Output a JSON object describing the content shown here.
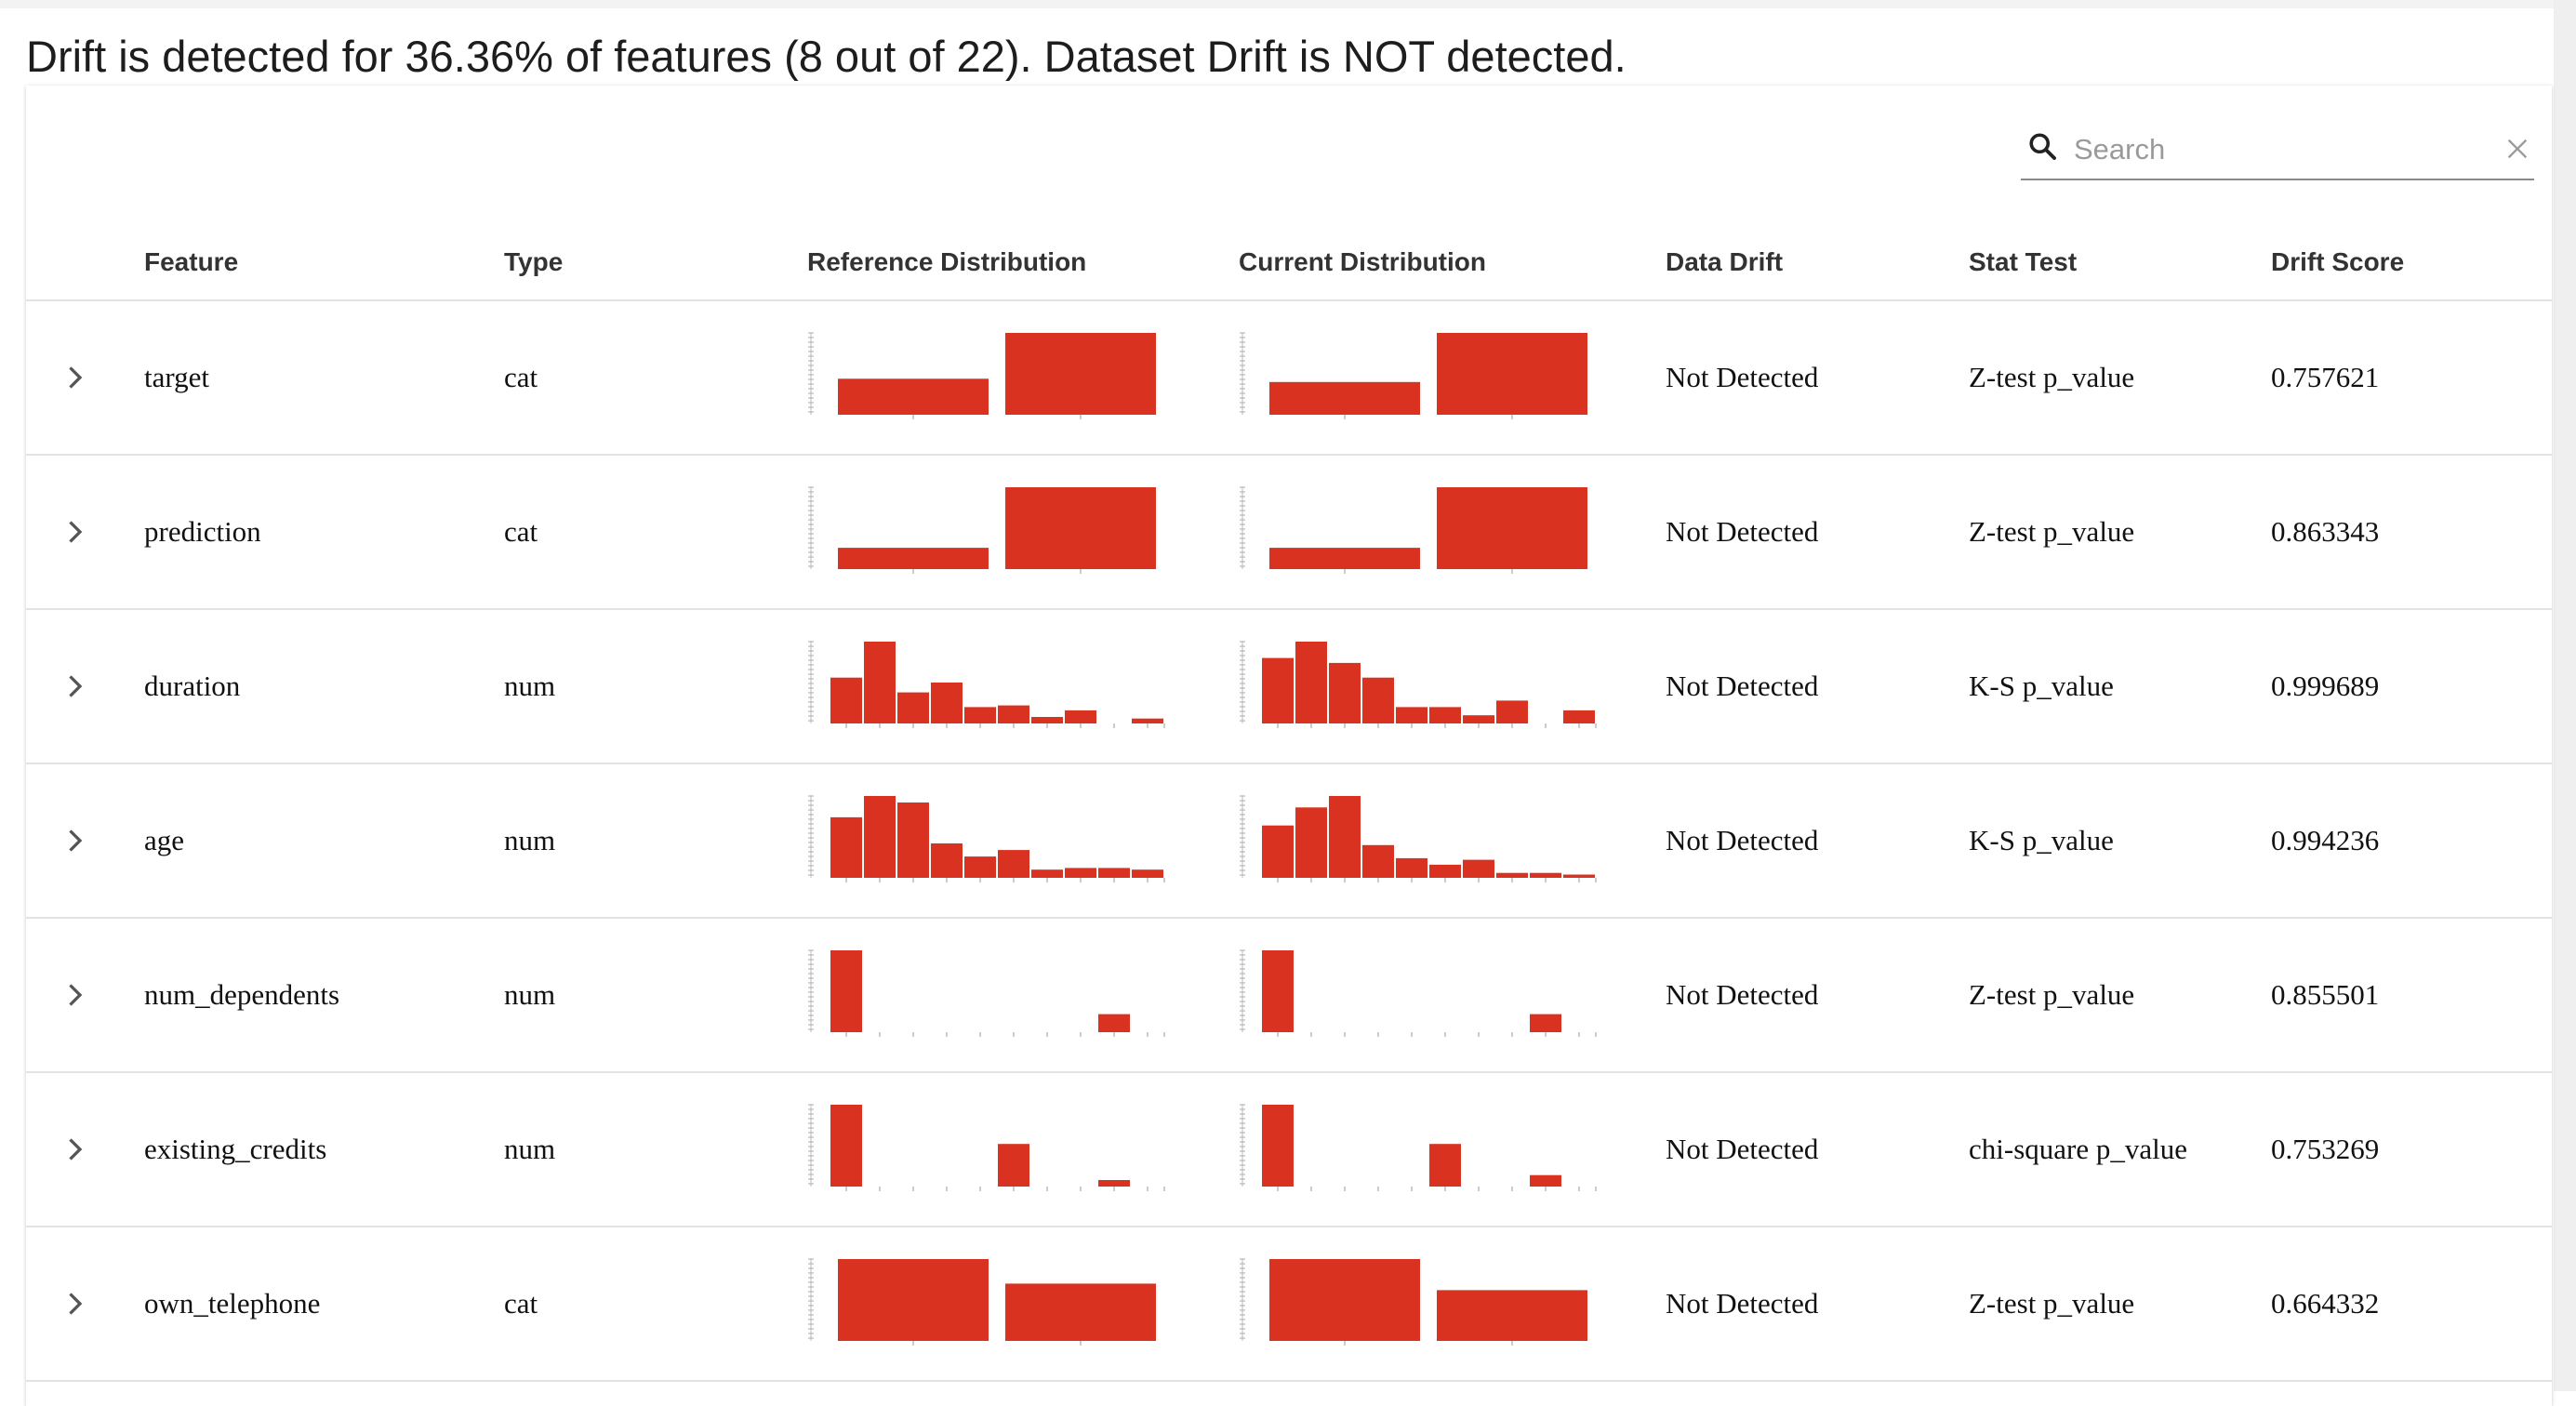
{
  "report": {
    "summary": "Drift is detected for 36.36% of features (8 out of 22). Dataset Drift is NOT detected."
  },
  "search": {
    "placeholder": "Search",
    "value": "",
    "icon": "search-icon",
    "clear_icon": "close-icon"
  },
  "table": {
    "columns": {
      "feature": "Feature",
      "type": "Type",
      "reference": "Reference Distribution",
      "current": "Current Distribution",
      "drift": "Data Drift",
      "test": "Stat Test",
      "score": "Drift Score"
    },
    "rows": [
      {
        "feature": "target",
        "type": "cat",
        "drift": "Not Detected",
        "test": "Z-test p_value",
        "score": "0.757621",
        "ref": [
          0.44,
          1.0
        ],
        "cur": [
          0.4,
          1.0
        ]
      },
      {
        "feature": "prediction",
        "type": "cat",
        "drift": "Not Detected",
        "test": "Z-test p_value",
        "score": "0.863343",
        "ref": [
          0.26,
          1.0
        ],
        "cur": [
          0.26,
          1.0
        ]
      },
      {
        "feature": "duration",
        "type": "num",
        "drift": "Not Detected",
        "test": "K-S p_value",
        "score": "0.999689",
        "ref": [
          0.56,
          1.0,
          0.38,
          0.5,
          0.2,
          0.22,
          0.08,
          0.16,
          0.0,
          0.06
        ],
        "cur": [
          0.8,
          1.0,
          0.74,
          0.56,
          0.2,
          0.2,
          0.1,
          0.28,
          0.0,
          0.16
        ]
      },
      {
        "feature": "age",
        "type": "num",
        "drift": "Not Detected",
        "test": "K-S p_value",
        "score": "0.994236",
        "ref": [
          0.74,
          1.0,
          0.92,
          0.42,
          0.26,
          0.34,
          0.1,
          0.12,
          0.12,
          0.1
        ],
        "cur": [
          0.64,
          0.86,
          1.0,
          0.4,
          0.24,
          0.16,
          0.22,
          0.06,
          0.06,
          0.04
        ]
      },
      {
        "feature": "num_dependents",
        "type": "num",
        "drift": "Not Detected",
        "test": "Z-test p_value",
        "score": "0.855501",
        "ref": [
          1.0,
          0,
          0,
          0,
          0,
          0,
          0,
          0,
          0.22,
          0
        ],
        "cur": [
          1.0,
          0,
          0,
          0,
          0,
          0,
          0,
          0,
          0.22,
          0
        ]
      },
      {
        "feature": "existing_credits",
        "type": "num",
        "drift": "Not Detected",
        "test": "chi-square p_value",
        "score": "0.753269",
        "ref": [
          1.0,
          0,
          0,
          0,
          0,
          0.52,
          0,
          0,
          0.08,
          0
        ],
        "cur": [
          1.0,
          0,
          0,
          0,
          0,
          0.52,
          0,
          0,
          0.14,
          0
        ]
      },
      {
        "feature": "own_telephone",
        "type": "cat",
        "drift": "Not Detected",
        "test": "Z-test p_value",
        "score": "0.664332",
        "ref": [
          1.0,
          0.7
        ],
        "cur": [
          1.0,
          0.62
        ]
      }
    ]
  },
  "colors": {
    "bar": "#d93220",
    "text": "#111111",
    "header": "#333333",
    "divider": "#e3e3e3"
  }
}
